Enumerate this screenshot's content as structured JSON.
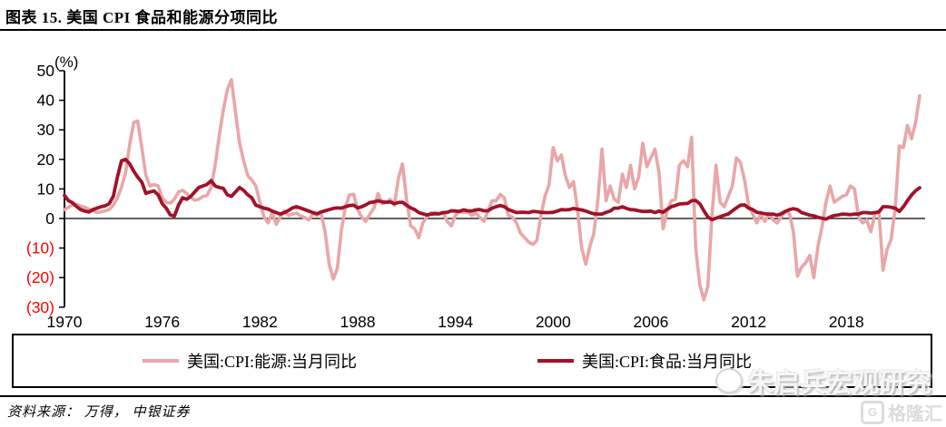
{
  "header": {
    "title": "图表 15. 美国 CPI 食品和能源分项同比"
  },
  "footer": {
    "source": "资料来源： 万得， 中银证券"
  },
  "watermarks": {
    "analyst": "朱启兵宏观研究",
    "platform": "格隆汇",
    "platform_icon": "G"
  },
  "chart_data": {
    "type": "line",
    "title": "美国 CPI 食品和能源分项同比",
    "unit_label": "(%)",
    "xlabel": "",
    "ylabel": "",
    "xlim": [
      1970,
      2022.5
    ],
    "ylim": [
      -30,
      50
    ],
    "grid": false,
    "legend_position": "bottom",
    "x_start": 1970.0,
    "x_step": 0.25,
    "x_unit": "decimal-year (quarterly samples of monthly YoY %)",
    "xticks": [
      1970,
      1976,
      1982,
      1988,
      1994,
      2000,
      2006,
      2012,
      2018
    ],
    "yticks": [
      {
        "v": 50,
        "label": "50"
      },
      {
        "v": 40,
        "label": "40"
      },
      {
        "v": 30,
        "label": "30"
      },
      {
        "v": 20,
        "label": "20"
      },
      {
        "v": 10,
        "label": "10"
      },
      {
        "v": 0,
        "label": "0"
      },
      {
        "v": -10,
        "label": "(10)"
      },
      {
        "v": -20,
        "label": "(20)"
      },
      {
        "v": -30,
        "label": "(30)"
      }
    ],
    "negative_tick_color": "#ff0000",
    "axis_color": "#000000",
    "series": [
      {
        "id": "energy",
        "name": "美国:CPI:能源:当月同比",
        "color": "#E9A6A8",
        "width": 3.6,
        "values": [
          3.0,
          3.8,
          4.6,
          4.8,
          4.2,
          3.8,
          3.2,
          2.6,
          2.0,
          2.3,
          2.6,
          3.0,
          4.5,
          7.0,
          10.5,
          15.5,
          25.0,
          32.5,
          33.0,
          24.0,
          14.5,
          11.0,
          11.5,
          11.0,
          7.0,
          5.5,
          5.2,
          6.5,
          9.0,
          9.5,
          8.5,
          7.0,
          6.2,
          6.5,
          7.5,
          7.8,
          10.5,
          18.0,
          28.0,
          36.5,
          43.5,
          47.0,
          36.0,
          25.5,
          19.5,
          14.5,
          13.0,
          11.0,
          5.5,
          0.5,
          -1.5,
          2.0,
          -2.0,
          0.5,
          2.5,
          1.0,
          1.5,
          1.8,
          0.8,
          0.3,
          -0.5,
          1.5,
          1.0,
          1.8,
          -4.5,
          -15.5,
          -20.5,
          -17.0,
          -4.0,
          4.0,
          8.0,
          8.2,
          3.0,
          0.5,
          -1.0,
          1.5,
          3.5,
          8.5,
          5.0,
          5.5,
          6.5,
          4.5,
          13.5,
          18.5,
          6.5,
          -2.5,
          -3.5,
          -6.5,
          -1.5,
          0.5,
          2.0,
          2.0,
          1.5,
          2.0,
          -1.0,
          -2.5,
          1.0,
          2.5,
          2.0,
          2.2,
          1.0,
          1.8,
          0.5,
          -1.0,
          2.5,
          6.0,
          6.0,
          8.2,
          7.0,
          1.0,
          0.5,
          -1.5,
          -5.0,
          -6.5,
          -8.0,
          -8.8,
          -7.5,
          1.0,
          7.5,
          11.5,
          24.0,
          19.5,
          21.5,
          14.5,
          10.5,
          12.5,
          3.0,
          -10.0,
          -15.5,
          -9.5,
          -5.0,
          6.5,
          23.5,
          6.0,
          11.0,
          6.5,
          5.5,
          15.0,
          10.5,
          18.0,
          10.0,
          14.0,
          25.5,
          17.5,
          20.5,
          23.5,
          15.5,
          -3.5,
          2.5,
          6.0,
          6.5,
          18.0,
          19.5,
          17.5,
          27.5,
          -10.0,
          -22.5,
          -27.5,
          -23.0,
          1.0,
          18.0,
          5.5,
          4.0,
          7.5,
          11.0,
          20.5,
          19.0,
          13.0,
          4.5,
          1.5,
          -1.5,
          1.5,
          -1.0,
          1.8,
          -0.5,
          -1.5,
          0.5,
          2.5,
          1.8,
          -4.5,
          -19.5,
          -16.5,
          -15.0,
          -12.5,
          -20.0,
          -9.5,
          -3.0,
          5.5,
          11.0,
          5.5,
          6.5,
          7.5,
          8.0,
          11.0,
          10.0,
          0.5,
          -1.5,
          -0.5,
          -4.5,
          1.5,
          2.5,
          -17.5,
          -10.5,
          -7.0,
          3.5,
          24.5,
          24.0,
          31.5,
          27.0,
          32.5,
          41.5
        ]
      },
      {
        "id": "food",
        "name": "美国:CPI:食品:当月同比",
        "color": "#A11228",
        "width": 3.8,
        "values": [
          7.8,
          6.0,
          5.3,
          4.0,
          3.0,
          2.5,
          2.2,
          3.0,
          3.5,
          4.0,
          4.3,
          5.0,
          7.5,
          14.0,
          19.5,
          20.0,
          18.5,
          16.0,
          14.0,
          12.3,
          8.5,
          9.0,
          9.3,
          8.0,
          5.0,
          3.5,
          1.2,
          0.8,
          4.5,
          7.0,
          6.5,
          7.5,
          9.0,
          10.5,
          11.0,
          11.5,
          12.8,
          11.0,
          10.5,
          10.2,
          8.0,
          7.5,
          9.0,
          10.5,
          9.5,
          8.0,
          7.0,
          4.5,
          4.0,
          3.5,
          3.2,
          2.5,
          2.0,
          1.5,
          2.0,
          2.7,
          3.6,
          4.0,
          3.5,
          3.0,
          2.5,
          2.0,
          1.6,
          2.2,
          2.6,
          3.0,
          3.4,
          3.6,
          3.5,
          4.0,
          4.4,
          4.5,
          3.6,
          4.0,
          4.6,
          5.4,
          5.6,
          6.0,
          5.6,
          5.5,
          5.6,
          5.0,
          5.4,
          5.5,
          4.5,
          3.6,
          3.0,
          2.0,
          1.6,
          1.2,
          1.5,
          1.6,
          1.6,
          2.0,
          2.1,
          2.6,
          2.5,
          2.4,
          2.9,
          2.6,
          2.5,
          2.9,
          3.0,
          2.6,
          2.6,
          3.5,
          4.0,
          4.4,
          4.0,
          3.0,
          2.5,
          2.0,
          2.1,
          2.1,
          2.0,
          2.4,
          2.3,
          2.1,
          2.0,
          2.0,
          2.1,
          2.5,
          3.0,
          2.9,
          3.0,
          3.4,
          3.1,
          2.9,
          2.5,
          2.0,
          1.6,
          1.5,
          1.5,
          2.1,
          2.5,
          3.5,
          3.5,
          4.0,
          3.4,
          3.0,
          2.9,
          2.6,
          2.4,
          2.4,
          2.5,
          2.0,
          2.5,
          2.1,
          3.1,
          4.0,
          4.4,
          4.9,
          5.0,
          5.1,
          6.0,
          6.1,
          5.0,
          2.6,
          0.5,
          -0.4,
          0.1,
          0.6,
          1.1,
          1.5,
          2.6,
          3.6,
          4.5,
          4.6,
          3.5,
          3.0,
          2.1,
          1.9,
          1.6,
          1.4,
          1.5,
          1.1,
          1.6,
          2.4,
          3.0,
          3.3,
          3.0,
          2.0,
          1.6,
          1.1,
          0.9,
          0.4,
          0.1,
          -0.2,
          0.5,
          1.0,
          1.2,
          1.5,
          1.4,
          1.3,
          1.5,
          1.5,
          2.0,
          2.0,
          1.8,
          2.0,
          2.2,
          4.0,
          4.0,
          3.8,
          3.5,
          2.4,
          4.0,
          6.0,
          7.9,
          9.4,
          10.4
        ]
      }
    ]
  }
}
